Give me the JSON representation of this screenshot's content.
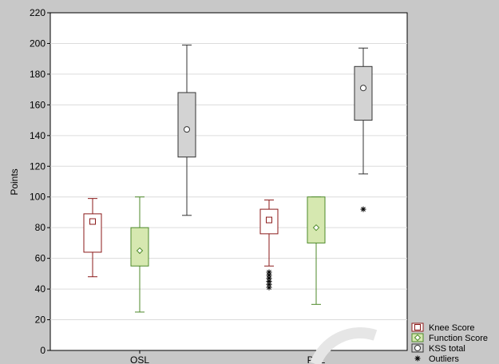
{
  "chart_data": {
    "type": "box",
    "ylabel": "Points",
    "xlabel": "",
    "ylim": [
      0,
      220
    ],
    "ytick_step": 20,
    "grid": true,
    "legend_position": "bottom-right",
    "categories": [
      "OSL",
      "PSL"
    ],
    "series": [
      {
        "name": "Knee Score",
        "marker": "square",
        "color": "#8b1a1a",
        "fill": "#ffffff",
        "boxes": [
          {
            "category": "OSL",
            "min": 48,
            "q1": 64,
            "center": 84,
            "q3": 89,
            "max": 99,
            "outliers": []
          },
          {
            "category": "PSL",
            "min": 55,
            "q1": 76,
            "center": 85,
            "q3": 92,
            "max": 98,
            "outliers": [
              41,
              43,
              45,
              47,
              49,
              51
            ]
          }
        ]
      },
      {
        "name": "Function Score",
        "marker": "diamond",
        "color": "#4e8a2a",
        "fill": "#d6e8b0",
        "boxes": [
          {
            "category": "OSL",
            "min": 25,
            "q1": 55,
            "center": 65,
            "q3": 80,
            "max": 100,
            "outliers": []
          },
          {
            "category": "PSL",
            "min": 30,
            "q1": 70,
            "center": 80,
            "q3": 100,
            "max": 100,
            "outliers": []
          }
        ]
      },
      {
        "name": "KSS total",
        "marker": "circle",
        "color": "#333333",
        "fill": "#d3d3d3",
        "boxes": [
          {
            "category": "OSL",
            "min": 88,
            "q1": 126,
            "center": 144,
            "q3": 168,
            "max": 199,
            "outliers": []
          },
          {
            "category": "PSL",
            "min": 115,
            "q1": 150,
            "center": 171,
            "q3": 185,
            "max": 197,
            "outliers": [
              92
            ]
          }
        ]
      }
    ],
    "legend": [
      {
        "label": "Knee Score",
        "marker": "square"
      },
      {
        "label": "Function Score",
        "marker": "diamond"
      },
      {
        "label": "KSS total",
        "marker": "circle"
      },
      {
        "label": "Outliers",
        "marker": "asterisk"
      }
    ]
  }
}
